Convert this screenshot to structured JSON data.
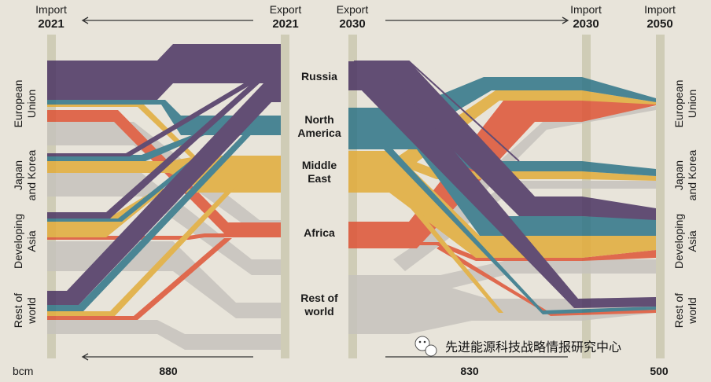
{
  "headers": {
    "left_import": {
      "title": "Import",
      "year": "2021"
    },
    "mid_export": {
      "title": "Export",
      "year": "2021"
    },
    "right_export": {
      "title": "Export",
      "year": "2030"
    },
    "right_import": {
      "title": "Import",
      "year": "2030"
    },
    "far_import": {
      "title": "Import",
      "year": "2050"
    }
  },
  "exporters": [
    {
      "label": "Russia"
    },
    {
      "label": "North\nAmerica"
    },
    {
      "label": "Middle\nEast"
    },
    {
      "label": "Africa"
    },
    {
      "label": "Rest of\nworld"
    }
  ],
  "importers_left": [
    "European\nUnion",
    "Japan\nand Korea",
    "Developing\nAsia",
    "Rest of\nworld"
  ],
  "importers_right": [
    "European\nUnion",
    "Japan\nand Korea",
    "Developing\nAsia",
    "Rest of\nworld"
  ],
  "bottom": {
    "unit": "bcm",
    "total_2021": "880",
    "total_2030": "830",
    "total_2050": "500"
  },
  "watermark": {
    "text": "先进能源科技战略情报研究中心",
    "icon": "wechat-icon"
  },
  "colors": {
    "background": "#e8e4da",
    "axis_bar": "#cfccb6",
    "russia": "#4b3463",
    "north_america": "#2f7588",
    "middle_east": "#e2ac3a",
    "africa": "#de5436",
    "rest_of_world": "#c6c3bd",
    "arrow": "#333333"
  }
}
